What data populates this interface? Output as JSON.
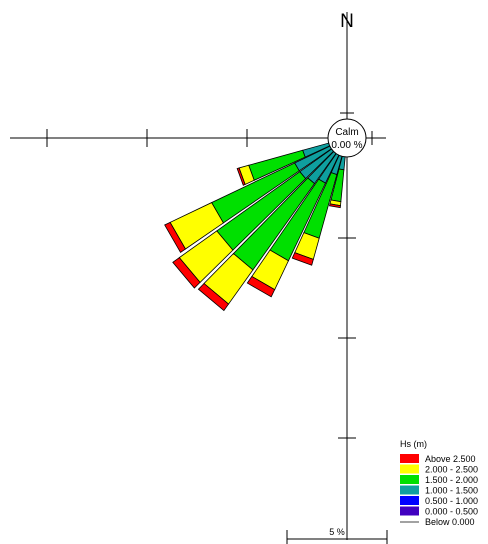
{
  "chart_data": {
    "type": "wind-rose",
    "north_label": "N",
    "calm": {
      "label": "Calm",
      "value_text": "0.00 %"
    },
    "scale_bar_label": "5 %",
    "legend": {
      "title": "Hs (m)",
      "entries": [
        {
          "label": "Above  2.500",
          "color": "#ff0000"
        },
        {
          "label": "2.000 - 2.500",
          "color": "#ffff00"
        },
        {
          "label": "1.500 - 2.000",
          "color": "#00e000"
        },
        {
          "label": "1.000 - 1.500",
          "color": "#0f9f9f"
        },
        {
          "label": "0.500 - 1.000",
          "color": "#0000ff"
        },
        {
          "label": "0.000 - 0.500",
          "color": "#4000c0"
        },
        {
          "label": "Below  0.000",
          "color": "#000000"
        }
      ]
    },
    "bin_colors": [
      "#4000c0",
      "#0000ff",
      "#0f9f9f",
      "#00e000",
      "#ffff00",
      "#ff0000"
    ],
    "sectors": [
      {
        "direction_deg": 190,
        "cumulative_percent": [
          0.1,
          0.5,
          1.6,
          3.2,
          3.4,
          3.5
        ]
      },
      {
        "direction_deg": 200,
        "cumulative_percent": [
          0.1,
          0.5,
          1.9,
          5.2,
          6.3,
          6.6
        ]
      },
      {
        "direction_deg": 210,
        "cumulative_percent": [
          0.1,
          0.6,
          2.5,
          6.8,
          8.4,
          8.8
        ]
      },
      {
        "direction_deg": 220,
        "cumulative_percent": [
          0.1,
          0.6,
          2.8,
          8.1,
          10.2,
          10.6
        ]
      },
      {
        "direction_deg": 230,
        "cumulative_percent": [
          0.1,
          0.7,
          2.9,
          8.0,
          10.3,
          10.7
        ]
      },
      {
        "direction_deg": 240,
        "cumulative_percent": [
          0.1,
          0.6,
          2.9,
          7.5,
          9.8,
          10.1
        ]
      },
      {
        "direction_deg": 250,
        "cumulative_percent": [
          0.1,
          0.5,
          2.3,
          5.1,
          5.6,
          5.7
        ]
      }
    ],
    "rings_percent": [
      5,
      10,
      15
    ],
    "axis_extent_percent": 18
  }
}
